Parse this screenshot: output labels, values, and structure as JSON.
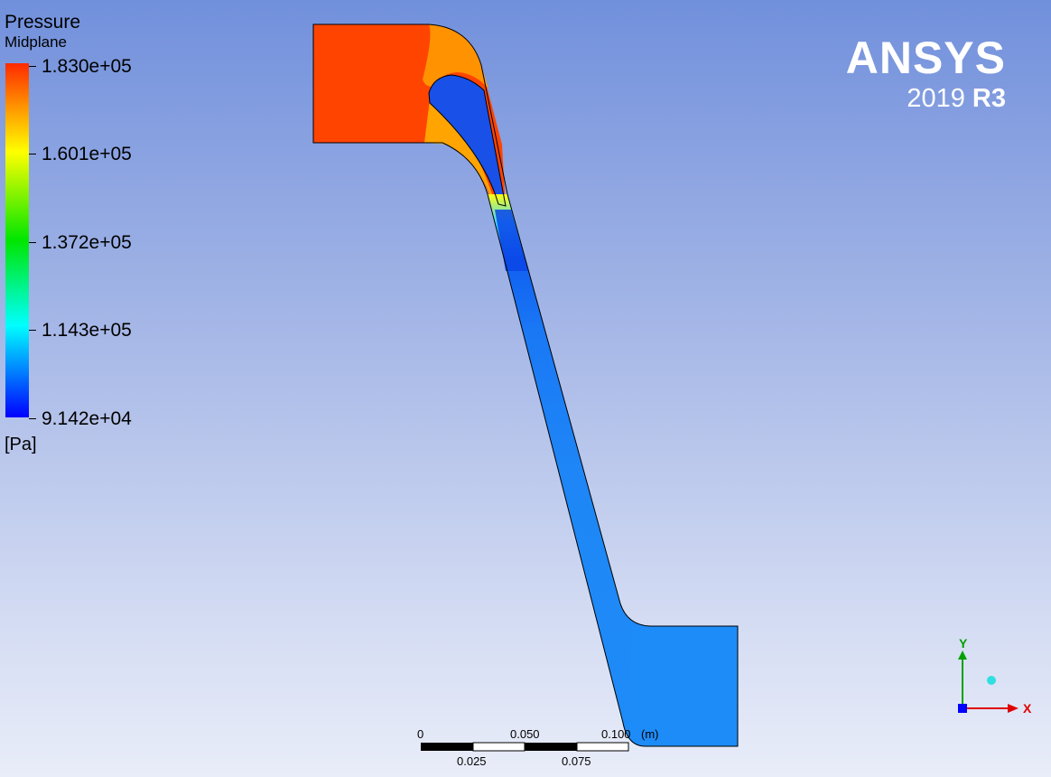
{
  "legend": {
    "title": "Pressure",
    "subtitle": "Midplane",
    "ticks": [
      "1.830e+05",
      "1.601e+05",
      "1.372e+05",
      "1.143e+05",
      "9.142e+04"
    ],
    "unit": "[Pa]"
  },
  "logo": {
    "word": "ANSYS",
    "version_year": "2019",
    "version_release": "R3"
  },
  "scale": {
    "top_labels": [
      "0",
      "0.050",
      "0.100"
    ],
    "unit": "(m)",
    "bottom_labels": [
      "0.025",
      "0.075"
    ]
  },
  "axes": {
    "y_label": "Y",
    "x_label": "X"
  }
}
